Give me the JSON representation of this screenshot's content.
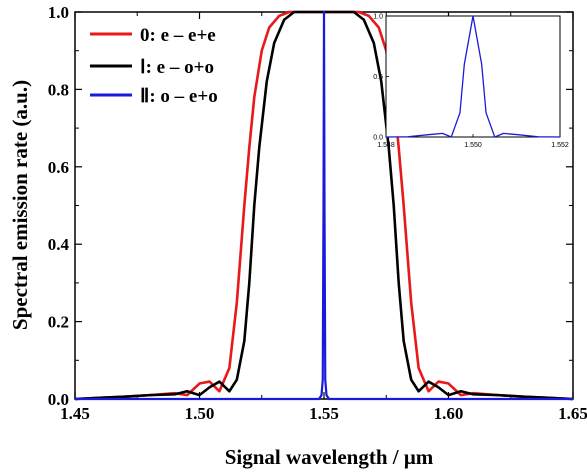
{
  "chart_data": [
    {
      "type": "line",
      "title": "",
      "xlabel": "Signal wavelength / μm",
      "ylabel": "Spectral emission rate (a.u.)",
      "xlim": [
        1.45,
        1.65
      ],
      "ylim": [
        0.0,
        1.0
      ],
      "xticks": [
        "1.45",
        "1.50",
        "1.55",
        "1.60",
        "1.65"
      ],
      "yticks": [
        "0.0",
        "0.2",
        "0.4",
        "0.6",
        "0.8",
        "1.0"
      ],
      "grid": false,
      "legend_position": "top-left",
      "series": [
        {
          "name": "0: e – e+e",
          "color": "#e8191a",
          "x": [
            1.45,
            1.46,
            1.47,
            1.48,
            1.49,
            1.495,
            1.5,
            1.504,
            1.508,
            1.512,
            1.515,
            1.518,
            1.52,
            1.522,
            1.525,
            1.528,
            1.532,
            1.536,
            1.54,
            1.545,
            1.55,
            1.555,
            1.56,
            1.564,
            1.568,
            1.572,
            1.575,
            1.578,
            1.58,
            1.582,
            1.585,
            1.588,
            1.592,
            1.596,
            1.6,
            1.605,
            1.61,
            1.62,
            1.63,
            1.64,
            1.65
          ],
          "y": [
            0.0,
            0.003,
            0.006,
            0.01,
            0.015,
            0.01,
            0.04,
            0.045,
            0.02,
            0.08,
            0.25,
            0.5,
            0.65,
            0.78,
            0.9,
            0.96,
            0.99,
            1.0,
            1.0,
            1.0,
            1.0,
            1.0,
            1.0,
            1.0,
            0.99,
            0.96,
            0.9,
            0.78,
            0.65,
            0.5,
            0.25,
            0.08,
            0.02,
            0.045,
            0.04,
            0.01,
            0.015,
            0.01,
            0.006,
            0.003,
            0.0
          ]
        },
        {
          "name": "Ⅰ: e – o+o",
          "color": "#000000",
          "x": [
            1.45,
            1.46,
            1.47,
            1.48,
            1.49,
            1.495,
            1.5,
            1.504,
            1.508,
            1.512,
            1.515,
            1.518,
            1.52,
            1.522,
            1.524,
            1.527,
            1.53,
            1.534,
            1.538,
            1.542,
            1.546,
            1.55,
            1.554,
            1.558,
            1.562,
            1.566,
            1.57,
            1.573,
            1.576,
            1.578,
            1.58,
            1.582,
            1.585,
            1.588,
            1.592,
            1.596,
            1.6,
            1.605,
            1.61,
            1.62,
            1.63,
            1.64,
            1.65
          ],
          "y": [
            0.0,
            0.003,
            0.006,
            0.01,
            0.012,
            0.02,
            0.01,
            0.03,
            0.045,
            0.02,
            0.05,
            0.15,
            0.3,
            0.5,
            0.65,
            0.82,
            0.92,
            0.98,
            1.0,
            1.0,
            1.0,
            1.0,
            1.0,
            1.0,
            1.0,
            0.98,
            0.92,
            0.82,
            0.65,
            0.5,
            0.3,
            0.15,
            0.05,
            0.02,
            0.045,
            0.03,
            0.01,
            0.02,
            0.012,
            0.01,
            0.006,
            0.003,
            0.0
          ]
        },
        {
          "name": "Ⅱ: o – e+o",
          "color": "#1a1adc",
          "x": [
            1.45,
            1.548,
            1.549,
            1.5495,
            1.5498,
            1.55,
            1.5502,
            1.5505,
            1.551,
            1.552,
            1.65
          ],
          "y": [
            0.0,
            0.0,
            0.01,
            0.05,
            0.5,
            1.0,
            0.5,
            0.05,
            0.01,
            0.0,
            0.0
          ]
        }
      ]
    },
    {
      "type": "line",
      "title": "",
      "xlabel": "",
      "ylabel": "",
      "xlim": [
        1.548,
        1.552
      ],
      "ylim": [
        0.0,
        1.0
      ],
      "xticks": [
        "1.548",
        "1.550",
        "1.552"
      ],
      "yticks": [
        "0.0",
        "0.5",
        "1.0"
      ],
      "series": [
        {
          "color": "#1a1adc",
          "x": [
            1.548,
            1.5485,
            1.549,
            1.5493,
            1.5495,
            1.5497,
            1.5498,
            1.55,
            1.5502,
            1.5503,
            1.5505,
            1.5507,
            1.551,
            1.5515,
            1.552
          ],
          "y": [
            0.0,
            0.002,
            0.02,
            0.03,
            0.0,
            0.2,
            0.6,
            1.0,
            0.6,
            0.2,
            0.0,
            0.03,
            0.02,
            0.002,
            0.0
          ]
        }
      ]
    }
  ]
}
